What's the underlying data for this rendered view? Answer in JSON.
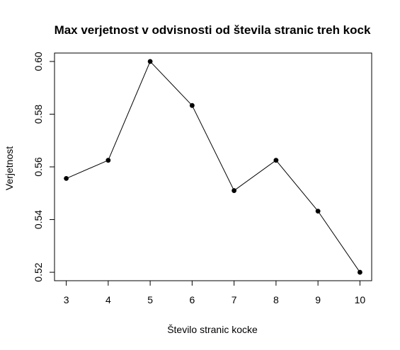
{
  "chart_data": {
    "type": "line",
    "title": "Max verjetnost v odvisnosti od števila stranic treh kock",
    "xlabel": "Število stranic kocke",
    "ylabel": "Verjetnost",
    "x": [
      3,
      4,
      5,
      6,
      7,
      8,
      9,
      10
    ],
    "y": [
      0.5556,
      0.5625,
      0.6,
      0.5833,
      0.551,
      0.5625,
      0.5432,
      0.52
    ],
    "xlim": [
      2.72,
      10.28
    ],
    "ylim": [
      0.5168,
      0.6032
    ],
    "xticks": [
      3,
      4,
      5,
      6,
      7,
      8,
      9,
      10
    ],
    "xtick_labels": [
      "3",
      "4",
      "5",
      "6",
      "7",
      "8",
      "9",
      "10"
    ],
    "yticks": [
      0.52,
      0.54,
      0.56,
      0.58,
      0.6
    ],
    "ytick_labels": [
      "0.52",
      "0.54",
      "0.56",
      "0.58",
      "0.60"
    ],
    "markers": "filled-circle",
    "line_color": "#000000",
    "grid": false,
    "legend": "none"
  }
}
